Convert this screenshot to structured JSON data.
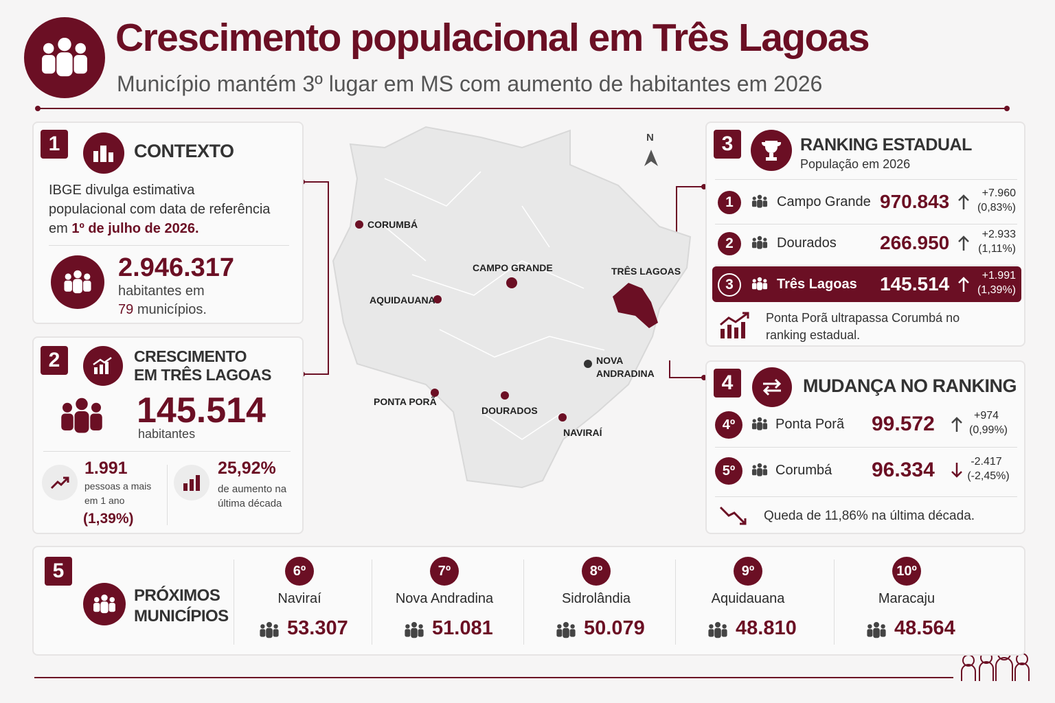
{
  "header": {
    "title": "Crescimento populacional em Três Lagoas",
    "subtitle": "Município mantém 3º lugar em MS com aumento de habitantes em 2026"
  },
  "contexto": {
    "number": "1",
    "title": "CONTEXTO",
    "text": "IBGE divulga estimativa populacional com data de referência em",
    "text_highlight": "1º de julho de 2026.",
    "stat": "2.946.317",
    "stat_text": "habitantes em",
    "stat_highlight": "79",
    "stat_after": "municípios."
  },
  "crescimento": {
    "number": "2",
    "title": "CRESCIMENTO EM TRÊS LAGOAS",
    "value": "145.514",
    "unit": "habitantes",
    "stats": [
      {
        "value": "1.991",
        "label": "pessoas a mais em 1 ano",
        "extra": "(1,39%)"
      },
      {
        "value": "25,92%",
        "label": "de aumento na última década"
      }
    ]
  },
  "map": {
    "compass": "N",
    "cities": [
      "CORUMBÁ",
      "CAMPO GRANDE",
      "TRÊS LAGOAS",
      "AQUIDAUANA",
      "NOVA ANDRADINA",
      "PONTA PORÃ",
      "DOURADOS",
      "NAVIRAÍ"
    ]
  },
  "ranking": {
    "number": "3",
    "title": "RANKING ESTADUAL",
    "subtitle": "População em 2026",
    "rows": [
      {
        "rank": "1",
        "name": "Campo Grande",
        "value": "970.843",
        "change": "+7.960",
        "pct": "(0,83%)"
      },
      {
        "rank": "2",
        "name": "Dourados",
        "value": "266.950",
        "change": "+2.933",
        "pct": "(1,11%)"
      },
      {
        "rank": "3",
        "name": "Três Lagoas",
        "value": "145.514",
        "change": "+1.991",
        "pct": "(1,39%)"
      }
    ],
    "note": "Ponta Porã ultrapassa Corumbá no ranking estadual."
  },
  "mudanca": {
    "number": "4",
    "title": "MUDANÇA NO RANKING",
    "rows": [
      {
        "rank": "4º",
        "name": "Ponta Porã",
        "value": "99.572",
        "change": "+974",
        "pct": "(0,99%)"
      },
      {
        "rank": "5º",
        "name": "Corumbá",
        "value": "96.334",
        "change": "-2.417",
        "pct": "(-2,45%)"
      }
    ],
    "note": "Queda de 11,86% na última década."
  },
  "proximos": {
    "number": "5",
    "title": "PRÓXIMOS MUNICÍPIOS",
    "items": [
      {
        "rank": "6º",
        "name": "Naviraí",
        "value": "53.307"
      },
      {
        "rank": "7º",
        "name": "Nova Andradina",
        "value": "51.081"
      },
      {
        "rank": "8º",
        "name": "Sidrolândia",
        "value": "50.079"
      },
      {
        "rank": "9º",
        "name": "Aquidauana",
        "value": "48.810"
      },
      {
        "rank": "10º",
        "name": "Maracaju",
        "value": "48.564"
      }
    ]
  }
}
